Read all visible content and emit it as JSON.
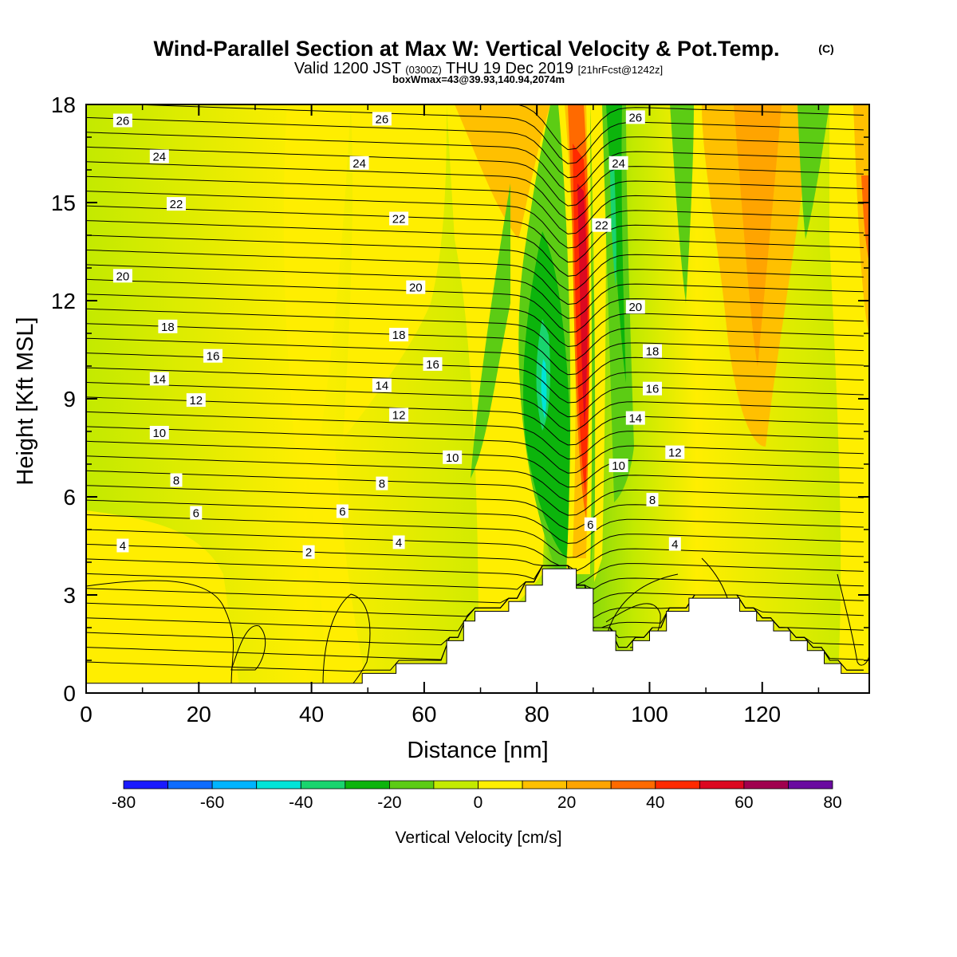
{
  "chart_data": {
    "type": "heatmap",
    "title": "Wind-Parallel Section at Max W: Vertical Velocity & Pot.Temp.",
    "title_mark": "(C)",
    "subtitle_main_a": "Valid 1200 JST",
    "subtitle_small_a": "(0300Z)",
    "subtitle_main_b": "THU 19 Dec 2019",
    "subtitle_small_b": "[21hrFcst@1242z]",
    "subtitle2": "boxWmax=43@39.93,140.94,2074m",
    "xlabel": "Distance [nm]",
    "ylabel": "Height [Kft MSL]",
    "xlim": [
      0,
      139
    ],
    "ylim": [
      0,
      18
    ],
    "xticks": [
      "0",
      "20",
      "40",
      "60",
      "80",
      "100",
      "120"
    ],
    "xtick_values": [
      0,
      20,
      40,
      60,
      80,
      100,
      120
    ],
    "yticks": [
      "0",
      "3",
      "6",
      "9",
      "12",
      "15",
      "18"
    ],
    "ytick_values": [
      0,
      3,
      6,
      9,
      12,
      15,
      18
    ],
    "colorbar": {
      "label": "Vertical Velocity [cm/s]",
      "ticks": [
        "-80",
        "-60",
        "-40",
        "-20",
        "0",
        "20",
        "40",
        "60",
        "80"
      ],
      "tick_values": [
        -80,
        -60,
        -40,
        -20,
        0,
        20,
        40,
        60,
        80
      ],
      "levels": [
        -80,
        -70,
        -60,
        -50,
        -40,
        -30,
        -20,
        -10,
        0,
        10,
        20,
        30,
        40,
        50,
        60,
        70,
        80
      ],
      "colors": [
        "#1a1aff",
        "#0f6cff",
        "#00b4ff",
        "#00e4d8",
        "#19d46e",
        "#0cb40c",
        "#5ccc14",
        "#c3ea00",
        "#ffee00",
        "#ffc000",
        "#ffa400",
        "#ff6a00",
        "#ff2a00",
        "#dc0820",
        "#a0004e",
        "#6a0aa0"
      ]
    },
    "terrain": [
      [
        0,
        0.3
      ],
      [
        49,
        0.3
      ],
      [
        49,
        0.6
      ],
      [
        55,
        0.6
      ],
      [
        55,
        0.9
      ],
      [
        64,
        0.9
      ],
      [
        64,
        1.6
      ],
      [
        67,
        1.6
      ],
      [
        67,
        2.2
      ],
      [
        69,
        2.2
      ],
      [
        69,
        2.5
      ],
      [
        75,
        2.5
      ],
      [
        75,
        2.8
      ],
      [
        78,
        2.8
      ],
      [
        78,
        3.3
      ],
      [
        81,
        3.3
      ],
      [
        81,
        3.8
      ],
      [
        87,
        3.8
      ],
      [
        87,
        3.2
      ],
      [
        90,
        3.2
      ],
      [
        90,
        1.9
      ],
      [
        94,
        1.9
      ],
      [
        94,
        1.3
      ],
      [
        97,
        1.3
      ],
      [
        97,
        1.6
      ],
      [
        100,
        1.6
      ],
      [
        100,
        1.9
      ],
      [
        103,
        1.9
      ],
      [
        103,
        2.5
      ],
      [
        107,
        2.5
      ],
      [
        107,
        2.9
      ],
      [
        116,
        2.9
      ],
      [
        116,
        2.5
      ],
      [
        119,
        2.5
      ],
      [
        119,
        2.2
      ],
      [
        122,
        2.2
      ],
      [
        122,
        1.9
      ],
      [
        125,
        1.9
      ],
      [
        125,
        1.6
      ],
      [
        128,
        1.6
      ],
      [
        128,
        1.3
      ],
      [
        131,
        1.3
      ],
      [
        131,
        0.9
      ],
      [
        134,
        0.9
      ],
      [
        134,
        0.6
      ],
      [
        139,
        0.6
      ]
    ],
    "isentrope_labels": [
      {
        "text": "26",
        "x": 6.5,
        "y": 17.5
      },
      {
        "text": "26",
        "x": 52.5,
        "y": 17.55
      },
      {
        "text": "26",
        "x": 97.5,
        "y": 17.6
      },
      {
        "text": "24",
        "x": 13,
        "y": 16.4
      },
      {
        "text": "24",
        "x": 48.5,
        "y": 16.2
      },
      {
        "text": "24",
        "x": 94.5,
        "y": 16.2
      },
      {
        "text": "22",
        "x": 16,
        "y": 14.95
      },
      {
        "text": "22",
        "x": 55.5,
        "y": 14.5
      },
      {
        "text": "22",
        "x": 91.5,
        "y": 14.3
      },
      {
        "text": "20",
        "x": 6.5,
        "y": 12.75
      },
      {
        "text": "20",
        "x": 58.5,
        "y": 12.4
      },
      {
        "text": "20",
        "x": 97.5,
        "y": 11.8
      },
      {
        "text": "18",
        "x": 14.5,
        "y": 11.2
      },
      {
        "text": "18",
        "x": 55.5,
        "y": 10.95
      },
      {
        "text": "18",
        "x": 100.5,
        "y": 10.45
      },
      {
        "text": "16",
        "x": 22.5,
        "y": 10.3
      },
      {
        "text": "16",
        "x": 61.5,
        "y": 10.05
      },
      {
        "text": "16",
        "x": 100.5,
        "y": 9.3
      },
      {
        "text": "14",
        "x": 13,
        "y": 9.6
      },
      {
        "text": "14",
        "x": 52.5,
        "y": 9.4
      },
      {
        "text": "14",
        "x": 97.5,
        "y": 8.4
      },
      {
        "text": "12",
        "x": 19.5,
        "y": 8.95
      },
      {
        "text": "12",
        "x": 55.5,
        "y": 8.5
      },
      {
        "text": "12",
        "x": 104.5,
        "y": 7.35
      },
      {
        "text": "10",
        "x": 13,
        "y": 7.95
      },
      {
        "text": "10",
        "x": 65,
        "y": 7.2
      },
      {
        "text": "10",
        "x": 94.5,
        "y": 6.95
      },
      {
        "text": "8",
        "x": 16,
        "y": 6.5
      },
      {
        "text": "8",
        "x": 52.5,
        "y": 6.4
      },
      {
        "text": "8",
        "x": 100.5,
        "y": 5.9
      },
      {
        "text": "6",
        "x": 19.5,
        "y": 5.5
      },
      {
        "text": "6",
        "x": 45.5,
        "y": 5.55
      },
      {
        "text": "6",
        "x": 89.5,
        "y": 5.15
      },
      {
        "text": "4",
        "x": 6.5,
        "y": 4.5
      },
      {
        "text": "4",
        "x": 55.5,
        "y": 4.6
      },
      {
        "text": "4",
        "x": 104.5,
        "y": 4.55
      },
      {
        "text": "2",
        "x": 39.5,
        "y": 4.3
      }
    ]
  }
}
